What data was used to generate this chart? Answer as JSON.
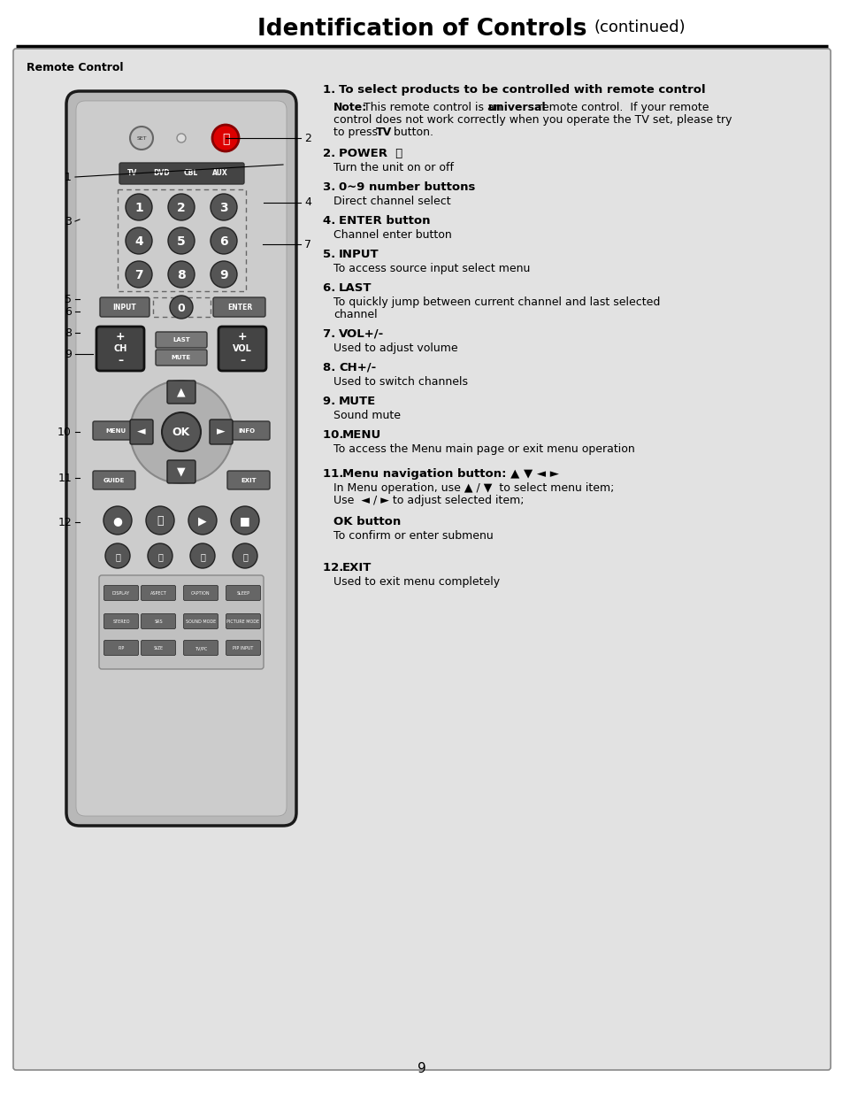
{
  "title_bold": "Identification of Controls",
  "title_normal": " (continued)",
  "section_label": "Remote Control",
  "page_number": "9",
  "bg_color": "#ffffff",
  "text_items": [
    {
      "num": "1",
      "heading": "To select products to be controlled with remote control",
      "lines": []
    },
    {
      "num": "",
      "heading": "",
      "note_bold": "Note:",
      "note_normal": " This remote control is an ",
      "note_bold2": "universal",
      "note_normal2": " remote control.  If your remote control does not work correctly when you operate the TV set, please try to press ",
      "note_bold3": "TV",
      "note_normal3": " button.",
      "lines": []
    },
    {
      "num": "2",
      "heading": "POWER  ⏻",
      "lines": [
        "Turn the unit on or off"
      ]
    },
    {
      "num": "3",
      "heading": "0~9 number buttons",
      "lines": [
        "Direct channel select"
      ]
    },
    {
      "num": "4",
      "heading": "ENTER button",
      "lines": [
        "Channel enter button"
      ]
    },
    {
      "num": "5",
      "heading": "INPUT",
      "lines": [
        "To access source input select menu"
      ]
    },
    {
      "num": "6",
      "heading": "LAST",
      "lines": [
        "To quickly jump between current channel and last selected",
        "channel"
      ]
    },
    {
      "num": "7",
      "heading": "VOL+/-",
      "lines": [
        "Used to adjust volume"
      ]
    },
    {
      "num": "8",
      "heading": "CH+/-",
      "lines": [
        "Used to switch channels"
      ]
    },
    {
      "num": "9",
      "heading": "MUTE",
      "lines": [
        "Sound mute"
      ]
    },
    {
      "num": "10",
      "heading": "MENU",
      "lines": [
        "To access the Menu main page or exit menu operation"
      ]
    },
    {
      "num": "11",
      "heading": "Menu navigation button: ▲ ▼ ◄ ►",
      "lines": [
        "In Menu operation, use ▲ / ▼  to select menu item;",
        "Use  ◄ / ► to adjust selected item;"
      ]
    },
    {
      "num": "",
      "heading": "OK button",
      "heading_bold": true,
      "lines": [
        "To confirm or enter submenu"
      ],
      "extra_space_before": true
    },
    {
      "num": "12",
      "heading": "EXIT",
      "lines": [
        "Used to exit menu completely"
      ],
      "extra_space_before": true
    }
  ],
  "remote_labels": [
    {
      "num": "1",
      "side": "left"
    },
    {
      "num": "2",
      "side": "right"
    },
    {
      "num": "3",
      "side": "left"
    },
    {
      "num": "4",
      "side": "right"
    },
    {
      "num": "5",
      "side": "left"
    },
    {
      "num": "6",
      "side": "left"
    },
    {
      "num": "7",
      "side": "right"
    },
    {
      "num": "8",
      "side": "left"
    },
    {
      "num": "9",
      "side": "left"
    },
    {
      "num": "10",
      "side": "left"
    },
    {
      "num": "11",
      "side": "left"
    },
    {
      "num": "12",
      "side": "left"
    }
  ]
}
